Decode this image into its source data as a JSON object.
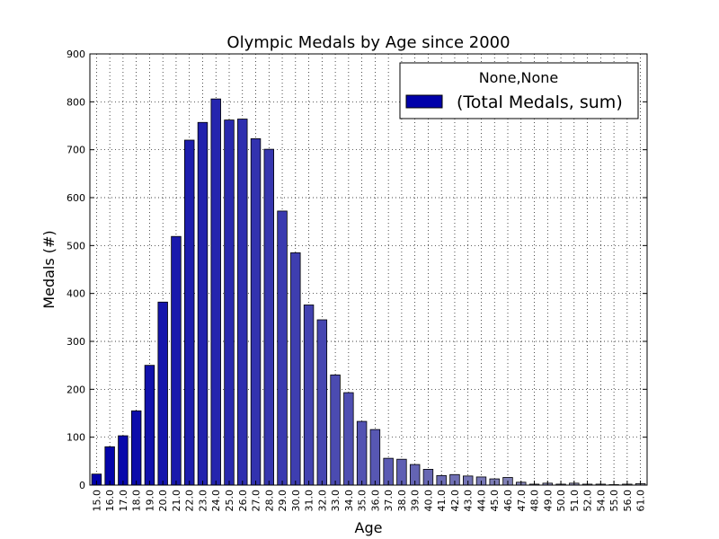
{
  "chart_data": {
    "type": "bar",
    "title": "Olympic Medals by Age since 2000",
    "xlabel": "Age",
    "ylabel": "Medals (#)",
    "ylim": [
      0,
      900
    ],
    "yticks": [
      "0",
      "100",
      "200",
      "300",
      "400",
      "500",
      "600",
      "700",
      "800",
      "900"
    ],
    "grid": true,
    "legend": {
      "title": "None,None",
      "placement": "top-right",
      "entries": [
        "(Total Medals, sum)"
      ]
    },
    "categories": [
      "15.0",
      "16.0",
      "17.0",
      "18.0",
      "19.0",
      "20.0",
      "21.0",
      "22.0",
      "23.0",
      "24.0",
      "25.0",
      "26.0",
      "27.0",
      "28.0",
      "29.0",
      "30.0",
      "31.0",
      "32.0",
      "33.0",
      "34.0",
      "35.0",
      "36.0",
      "37.0",
      "38.0",
      "39.0",
      "40.0",
      "41.0",
      "42.0",
      "43.0",
      "44.0",
      "45.0",
      "46.0",
      "47.0",
      "48.0",
      "49.0",
      "50.0",
      "51.0",
      "52.0",
      "54.0",
      "55.0",
      "56.0",
      "61.0"
    ],
    "series": [
      {
        "name": "(Total Medals, sum)",
        "values": [
          23,
          80,
          103,
          155,
          250,
          382,
          519,
          720,
          757,
          806,
          762,
          764,
          723,
          701,
          572,
          485,
          376,
          345,
          230,
          193,
          133,
          116,
          56,
          54,
          43,
          33,
          20,
          22,
          19,
          17,
          13,
          16,
          6,
          2,
          4,
          2,
          4,
          2,
          2,
          1,
          2,
          3
        ]
      }
    ],
    "colors": {
      "bar_start": "#0000aa",
      "bar_end": "#aaaabb",
      "legend_swatch": "#0000aa",
      "grid": "#000000"
    }
  }
}
